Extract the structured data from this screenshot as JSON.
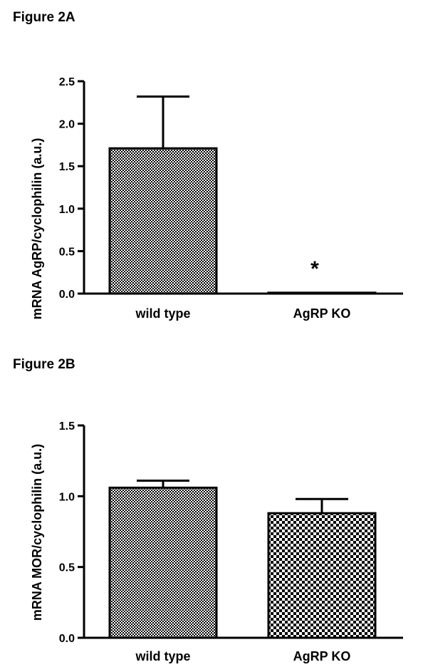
{
  "panels": [
    {
      "title": "Figure 2A",
      "chart_data": {
        "type": "bar",
        "categories": [
          "wild type",
          "AgRP KO"
        ],
        "values": [
          1.71,
          0.01
        ],
        "errors": [
          0.61,
          0.0
        ],
        "ylabel": "mRNA AgRP/cyclophilin (a.u.)",
        "xlabel": "",
        "ylim": [
          0,
          2.5
        ],
        "yticks": [
          "0.0",
          "0.5",
          "1.0",
          "1.5",
          "2.0",
          "2.5"
        ],
        "ytick_values": [
          0,
          0.5,
          1.0,
          1.5,
          2.0,
          2.5
        ],
        "annotations": [
          {
            "text": "*",
            "category": "AgRP KO"
          }
        ],
        "grid": false
      }
    },
    {
      "title": "Figure 2B",
      "chart_data": {
        "type": "bar",
        "categories": [
          "wild type",
          "AgRP KO"
        ],
        "values": [
          1.06,
          0.88
        ],
        "errors": [
          0.05,
          0.1
        ],
        "ylabel": "mRNA MOR/cyclophilin (a.u.)",
        "xlabel": "",
        "ylim": [
          0,
          1.5
        ],
        "yticks": [
          "0.0",
          "0.5",
          "1.0",
          "1.5"
        ],
        "ytick_values": [
          0,
          0.5,
          1.0,
          1.5
        ],
        "annotations": [],
        "grid": false
      }
    }
  ]
}
